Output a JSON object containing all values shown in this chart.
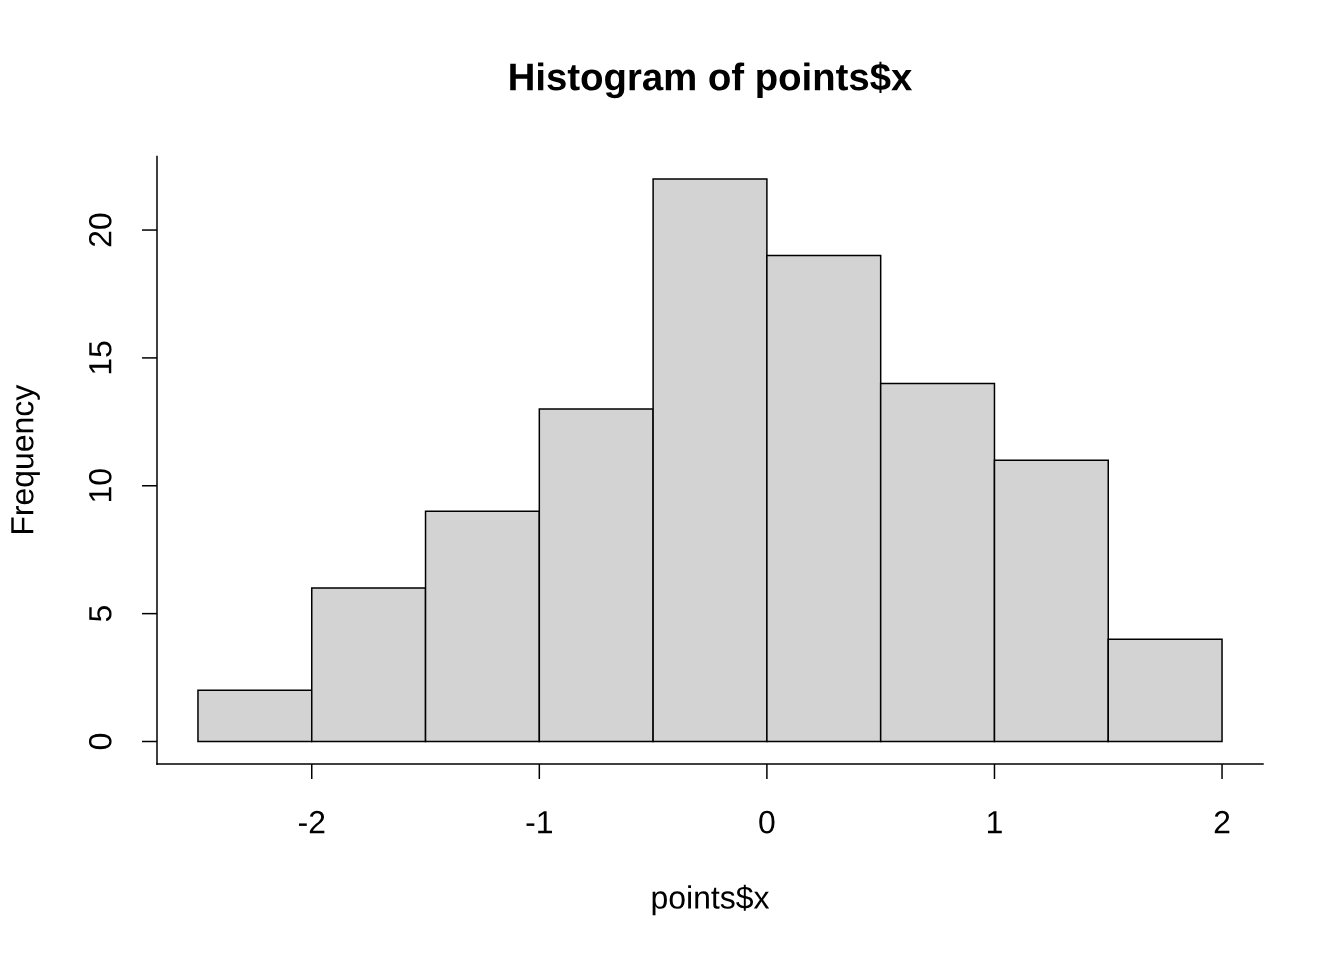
{
  "chart_data": {
    "type": "histogram",
    "title": "Histogram of points$x",
    "xlabel": "points$x",
    "ylabel": "Frequency",
    "bins": [
      -2.5,
      -2,
      -1.5,
      -1,
      -0.5,
      0,
      0.5,
      1,
      1.5,
      2
    ],
    "values": [
      2,
      6,
      9,
      13,
      22,
      19,
      14,
      11,
      4
    ],
    "color": "#d3d3d3",
    "xlim": [
      -2.68,
      2.18
    ],
    "ylim": [
      -0.88,
      22.88
    ],
    "xticks": [
      -2,
      -1,
      0,
      1,
      2
    ],
    "yticks": [
      0,
      5,
      10,
      15,
      20
    ],
    "grid": false
  }
}
